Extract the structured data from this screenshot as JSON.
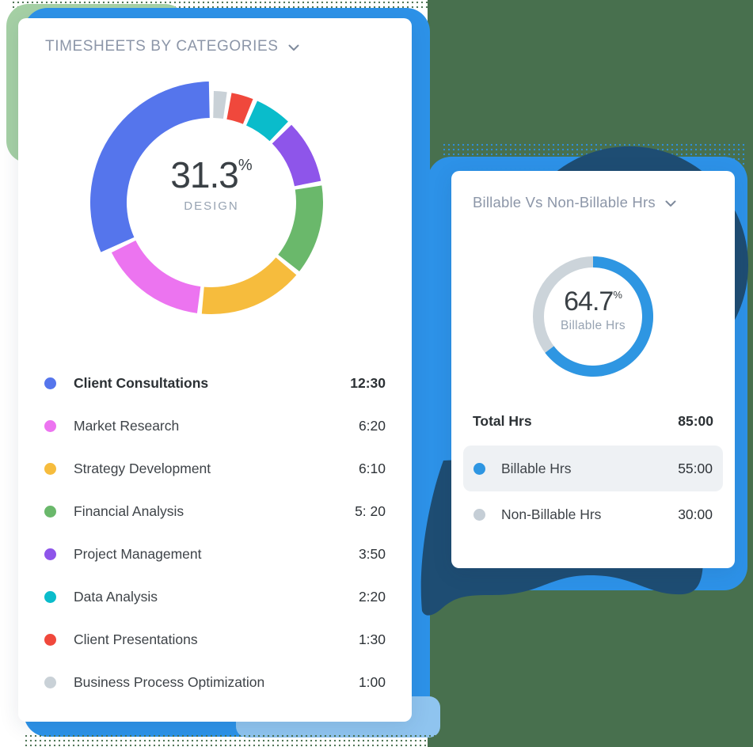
{
  "background": {
    "field_green": "#48704e",
    "accent_light_green": "#a5d0a5",
    "frame_blue": "#2d92e8",
    "navy_blob": "#1e4d73",
    "accent_light_blue": "#8fc4ef"
  },
  "timesheets_card": {
    "title": "TIMESHEETS BY CATEGORIES",
    "center": {
      "value": "31.3",
      "unit": "%",
      "label": "DESIGN"
    },
    "categories": [
      {
        "label": "Client Consultations",
        "time": "12:30",
        "minutes": 750,
        "color": "#5575ec",
        "bold": true,
        "expanded": true
      },
      {
        "label": "Market Research",
        "time": "6:20",
        "minutes": 380,
        "color": "#ec74f0",
        "bold": false,
        "expanded": false
      },
      {
        "label": "Strategy Development",
        "time": "6:10",
        "minutes": 370,
        "color": "#f6bc3d",
        "bold": false,
        "expanded": false
      },
      {
        "label": "Financial Analysis",
        "time": "5: 20",
        "minutes": 320,
        "color": "#6ab86b",
        "bold": false,
        "expanded": false
      },
      {
        "label": "Project Management",
        "time": "3:50",
        "minutes": 230,
        "color": "#8e55ea",
        "bold": false,
        "expanded": false
      },
      {
        "label": "Data Analysis",
        "time": "2:20",
        "minutes": 140,
        "color": "#0abccb",
        "bold": false,
        "expanded": false
      },
      {
        "label": "Client Presentations",
        "time": "1:30",
        "minutes": 90,
        "color": "#f0483c",
        "bold": false,
        "expanded": false
      },
      {
        "label": "Business Process Optimization",
        "time": "1:00",
        "minutes": 60,
        "color": "#c9d1d7",
        "bold": false,
        "expanded": false
      }
    ]
  },
  "billable_card": {
    "title": "Billable Vs Non-Billable Hrs",
    "center": {
      "value": "64.7",
      "unit": "%",
      "label": "Billable Hrs"
    },
    "percent_billable": 64.7,
    "ring": {
      "arc_color": "#2e96e2",
      "track_color": "#ccd4da"
    },
    "total": {
      "label": "Total Hrs",
      "value": "85:00"
    },
    "rows": [
      {
        "label": "Billable Hrs",
        "value": "55:00",
        "color": "#2e96e2",
        "highlighted": true
      },
      {
        "label": "Non-Billable Hrs",
        "value": "30:00",
        "color": "#c5ced6",
        "highlighted": false
      }
    ]
  },
  "chart_data": [
    {
      "type": "donut",
      "title": "TIMESHEETS BY CATEGORIES",
      "center_value_pct": 31.3,
      "center_label": "DESIGN",
      "categories": [
        "Client Consultations",
        "Market Research",
        "Strategy Development",
        "Financial Analysis",
        "Project Management",
        "Data Analysis",
        "Client Presentations",
        "Business Process Optimization"
      ],
      "values_hhmm": [
        "12:30",
        "6:20",
        "6:10",
        "5: 20",
        "3:50",
        "2:20",
        "1:30",
        "1:00"
      ],
      "values_minutes": [
        750,
        380,
        370,
        320,
        230,
        140,
        90,
        60
      ],
      "colors": [
        "#5575ec",
        "#ec74f0",
        "#f6bc3d",
        "#6ab86b",
        "#8e55ea",
        "#0abccb",
        "#f0483c",
        "#c9d1d7"
      ],
      "highlighted_segment": "Client Consultations",
      "segment_order_clockwise_from_top": [
        "Business Process Optimization",
        "Client Presentations",
        "Data Analysis",
        "Project Management",
        "Financial Analysis",
        "Strategy Development",
        "Market Research",
        "Client Consultations"
      ],
      "legend_position": "bottom"
    },
    {
      "type": "donut",
      "title": "Billable Vs Non-Billable Hrs",
      "center_value_pct": 64.7,
      "center_label": "Billable Hrs",
      "categories": [
        "Billable Hrs",
        "Non-Billable Hrs"
      ],
      "values_hhmm": [
        "55:00",
        "30:00"
      ],
      "values_minutes": [
        3300,
        1800
      ],
      "total_hhmm": "85:00",
      "colors": [
        "#2e96e2",
        "#c9d2d9"
      ],
      "legend_position": "bottom"
    }
  ]
}
